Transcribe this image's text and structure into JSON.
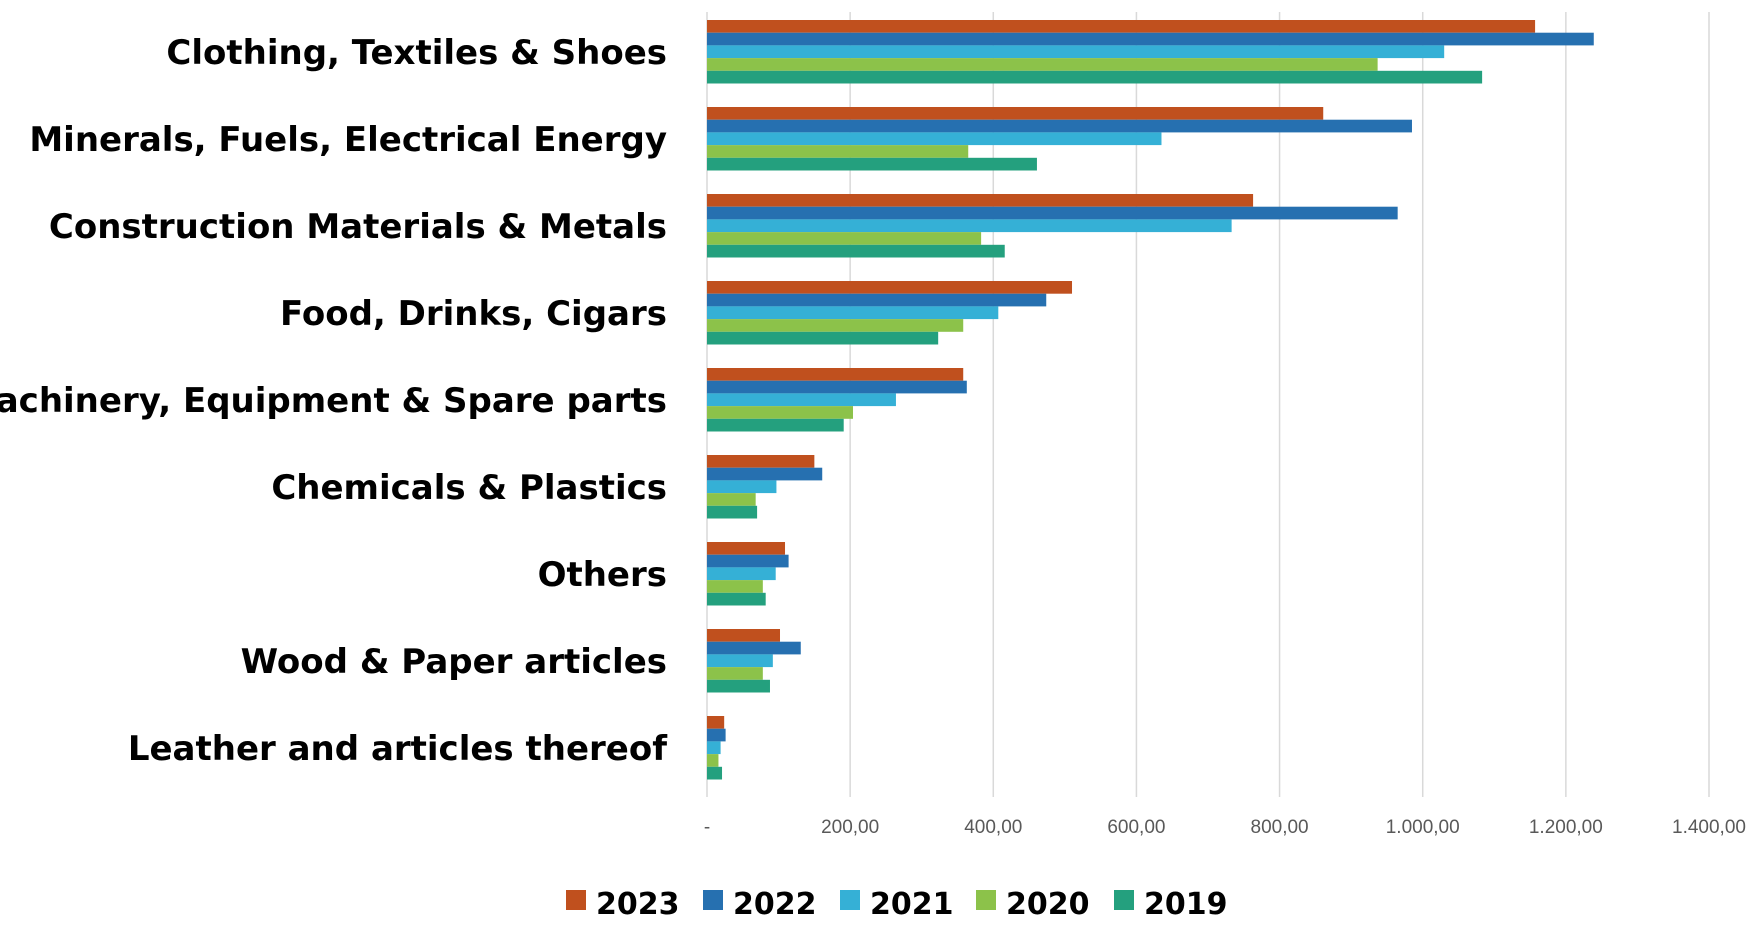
{
  "chart_data": {
    "type": "bar",
    "orientation": "horizontal",
    "categories": [
      "Clothing, Textiles & Shoes",
      "Minerals, Fuels, Electrical Energy",
      "Construction Materials & Metals",
      "Food, Drinks, Cigars",
      "Machinery, Equipment & Spare parts",
      "Chemicals & Plastics",
      "Others",
      "Wood & Paper articles",
      "Leather and articles thereof"
    ],
    "series": [
      {
        "name": "2023",
        "color": "#c0501e",
        "values": [
          1157,
          861,
          763,
          510,
          358,
          150,
          109,
          102,
          24
        ]
      },
      {
        "name": "2022",
        "color": "#2670b0",
        "values": [
          1239,
          985,
          965,
          474,
          363,
          161,
          114,
          131,
          26
        ]
      },
      {
        "name": "2021",
        "color": "#35b0d6",
        "values": [
          1030,
          635,
          733,
          407,
          264,
          97,
          96,
          92,
          19
        ]
      },
      {
        "name": "2020",
        "color": "#8cc24a",
        "values": [
          937,
          365,
          383,
          358,
          204,
          68,
          78,
          78,
          16
        ]
      },
      {
        "name": "2019",
        "color": "#24a07e",
        "values": [
          1083,
          461,
          416,
          323,
          191,
          70,
          82,
          88,
          21
        ]
      }
    ],
    "xlim": [
      0,
      1400
    ],
    "x_ticks": [
      0,
      200,
      400,
      600,
      800,
      1000,
      1200,
      1400
    ],
    "x_tick_labels": [
      "-",
      "200,00",
      "400,00",
      "600,00",
      "800,00",
      "1.000,00",
      "1.200,00",
      "1.400,00"
    ],
    "grid": true,
    "legend_position": "bottom",
    "title": "",
    "xlabel": "",
    "ylabel": ""
  }
}
